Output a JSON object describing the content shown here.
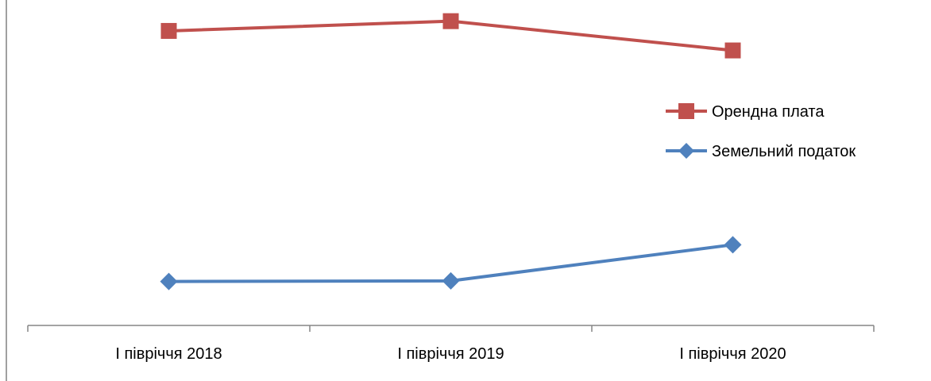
{
  "chart_data": {
    "type": "line",
    "title": "",
    "xlabel": "",
    "ylabel": "",
    "categories": [
      "І півріччя 2018",
      "І півріччя 2019",
      "І півріччя 2020"
    ],
    "ylim": [
      0,
      100
    ],
    "grid": false,
    "legend_position": "right",
    "series": [
      {
        "name": "Орендна плата",
        "values": [
          90.5,
          93.5,
          84.5
        ],
        "color": "#C0504D",
        "marker": "square"
      },
      {
        "name": "Земельний податок",
        "values": [
          13.5,
          13.7,
          24.8
        ],
        "color": "#4F81BD",
        "marker": "diamond"
      }
    ]
  }
}
